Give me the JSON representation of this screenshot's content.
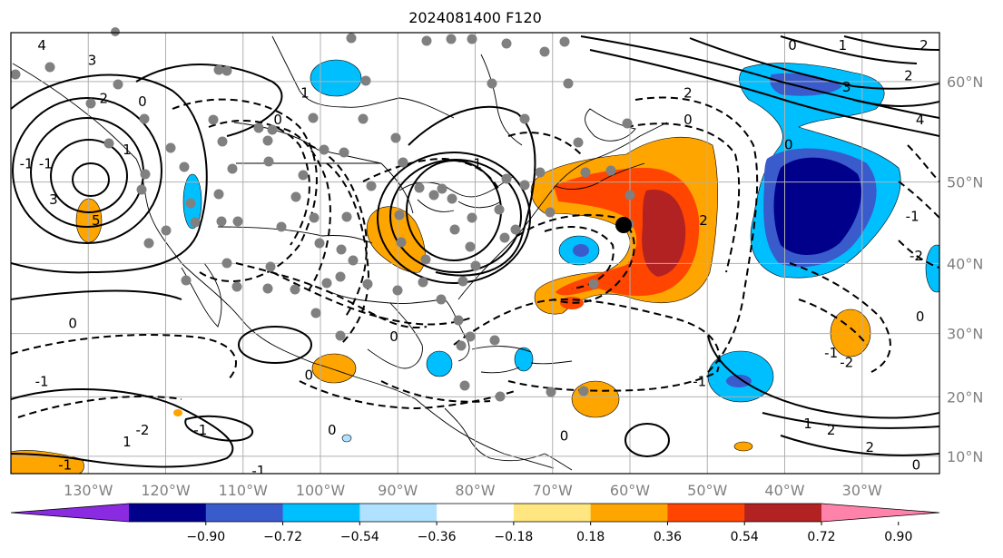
{
  "title": "2024081400 F120",
  "colors": {
    "land_line": "#000000",
    "grid": "#b0b0b0",
    "station": "#808080",
    "tick_label": "#808080"
  },
  "map": {
    "lon_range": [
      -140,
      -20
    ],
    "lat_range": [
      7,
      64
    ],
    "lon_ticks": [
      {
        "lon": -130,
        "label": "130°W"
      },
      {
        "lon": -120,
        "label": "120°W"
      },
      {
        "lon": -110,
        "label": "110°W"
      },
      {
        "lon": -100,
        "label": "100°W"
      },
      {
        "lon": -90,
        "label": "90°W"
      },
      {
        "lon": -80,
        "label": "80°W"
      },
      {
        "lon": -70,
        "label": "70°W"
      },
      {
        "lon": -60,
        "label": "60°W"
      },
      {
        "lon": -50,
        "label": "50°W"
      },
      {
        "lon": -40,
        "label": "40°W"
      },
      {
        "lon": -30,
        "label": "30°W"
      }
    ],
    "lat_ticks": [
      {
        "lat": 60,
        "label": "60°N"
      },
      {
        "lat": 50,
        "label": "50°N"
      },
      {
        "lat": 40,
        "label": "40°N"
      },
      {
        "lat": 30,
        "label": "30°N"
      },
      {
        "lat": 20,
        "label": "20°N"
      },
      {
        "lat": 10,
        "label": "10°N"
      }
    ],
    "contour_labels": [
      {
        "text": "-1",
        "lon": -135.5,
        "lat": 52
      },
      {
        "text": "3",
        "lon": -134.5,
        "lat": 48
      },
      {
        "text": "5",
        "lon": -129,
        "lat": 45.5
      },
      {
        "text": "4",
        "lon": -136,
        "lat": 63
      },
      {
        "text": "3",
        "lon": -129.5,
        "lat": 61.8
      },
      {
        "text": "2",
        "lon": -128,
        "lat": 58.5
      },
      {
        "text": "0",
        "lon": -123,
        "lat": 58.2
      },
      {
        "text": "1",
        "lon": -125,
        "lat": 53.5
      },
      {
        "text": "-1",
        "lon": -138,
        "lat": 52
      },
      {
        "text": "0",
        "lon": -132,
        "lat": 31.5
      },
      {
        "text": "-1",
        "lon": -136,
        "lat": 22.5
      },
      {
        "text": "0",
        "lon": -105.5,
        "lat": 56.5
      },
      {
        "text": "1",
        "lon": -102,
        "lat": 59
      },
      {
        "text": "0",
        "lon": -90.5,
        "lat": 29.5
      },
      {
        "text": "0",
        "lon": -101.5,
        "lat": 23.5
      },
      {
        "text": "-1",
        "lon": -115.5,
        "lat": 14.5
      },
      {
        "text": "0",
        "lon": -98.5,
        "lat": 14.5
      },
      {
        "text": "-1",
        "lon": -108,
        "lat": 7.5
      },
      {
        "text": "-2",
        "lon": -123,
        "lat": 14.5
      },
      {
        "text": "1",
        "lon": -125,
        "lat": 12.5
      },
      {
        "text": "-1",
        "lon": -133,
        "lat": 8.5
      },
      {
        "text": "-1",
        "lon": -80,
        "lat": 52
      },
      {
        "text": "0",
        "lon": -52.5,
        "lat": 56.5
      },
      {
        "text": "2",
        "lon": -52.5,
        "lat": 59
      },
      {
        "text": "2",
        "lon": -50.5,
        "lat": 45.5
      },
      {
        "text": "-1",
        "lon": -51,
        "lat": 22.5
      },
      {
        "text": "0",
        "lon": -68.5,
        "lat": 13.5
      },
      {
        "text": "0",
        "lon": -39.5,
        "lat": 54
      },
      {
        "text": "3",
        "lon": -32,
        "lat": 59.5
      },
      {
        "text": "4",
        "lon": -22.5,
        "lat": 56.5
      },
      {
        "text": "2",
        "lon": -24,
        "lat": 60.5
      },
      {
        "text": "1",
        "lon": -32.5,
        "lat": 63
      },
      {
        "text": "0",
        "lon": -39,
        "lat": 63
      },
      {
        "text": "2",
        "lon": -22,
        "lat": 63
      },
      {
        "text": "-1",
        "lon": -23.5,
        "lat": 46
      },
      {
        "text": "-2",
        "lon": -23,
        "lat": 41
      },
      {
        "text": "0",
        "lon": -22.5,
        "lat": 32.5
      },
      {
        "text": "1",
        "lon": -37,
        "lat": 15.5
      },
      {
        "text": "2",
        "lon": -34,
        "lat": 14.5
      },
      {
        "text": "2",
        "lon": -29,
        "lat": 11.5
      },
      {
        "text": "0",
        "lon": -23,
        "lat": 8.5
      },
      {
        "text": "-2",
        "lon": -32,
        "lat": 25.5
      },
      {
        "text": "-1",
        "lon": -34,
        "lat": 27
      }
    ],
    "colorbar": {
      "colors": [
        "#8a2be2",
        "#00008b",
        "#3a5bcc",
        "#00bfff",
        "#b0e2ff",
        "#ffffff",
        "#ffe680",
        "#ffa500",
        "#ff4500",
        "#b22222",
        "#ff82ab"
      ],
      "tick_labels": [
        "−0.90",
        "−0.72",
        "−0.54",
        "−0.36",
        "−0.18",
        "0.18",
        "0.36",
        "0.54",
        "0.72",
        "0.90"
      ]
    }
  }
}
